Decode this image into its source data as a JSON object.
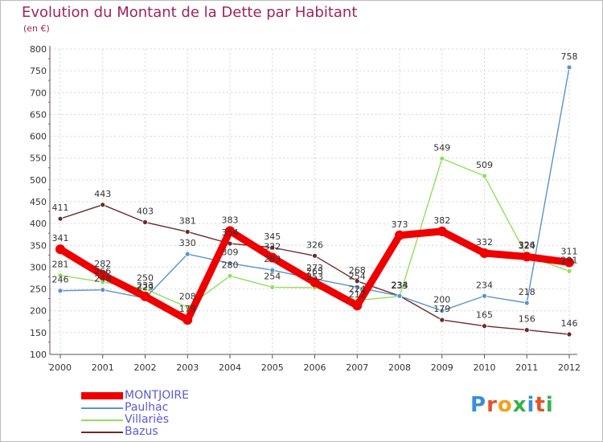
{
  "title": "Evolution du Montant de la Dette par Habitant",
  "unit": "(en €)",
  "logo": {
    "text": "Proxiti",
    "colors": [
      "#3a8fd8",
      "#e2522b",
      "#f2a21a",
      "#35b24a",
      "#3a8fd8",
      "#e2522b",
      "#35b24a"
    ]
  },
  "chart_data": {
    "type": "line",
    "x": [
      2000,
      2001,
      2002,
      2003,
      2004,
      2005,
      2006,
      2007,
      2008,
      2009,
      2010,
      2011,
      2012
    ],
    "ylim": [
      100,
      800
    ],
    "yticks": [
      100,
      150,
      200,
      250,
      300,
      350,
      400,
      450,
      500,
      550,
      600,
      650,
      700,
      750,
      800
    ],
    "grid": true,
    "legend_position": "bottom-left",
    "series": [
      {
        "name": "MONTJOIRE",
        "color": "#ee0000",
        "values": [
          341,
          282,
          233,
          179,
          383,
          322,
          265,
          212,
          373,
          382,
          332,
          324,
          311
        ]
      },
      {
        "name": "Paulhac",
        "color": "#5b93c8",
        "values": [
          246,
          248,
          229,
          330,
          309,
          293,
          273,
          254,
          234,
          200,
          234,
          218,
          758
        ]
      },
      {
        "name": "Villariès",
        "color": "#8fe05a",
        "values": [
          281,
          266,
          250,
          208,
          280,
          254,
          253,
          224,
          233,
          549,
          509,
          326,
          291
        ]
      },
      {
        "name": "Bazus",
        "color": "#6b2a2a",
        "values": [
          411,
          443,
          403,
          381,
          354,
          345,
          326,
          268,
          234,
          179,
          165,
          156,
          146
        ]
      }
    ]
  }
}
